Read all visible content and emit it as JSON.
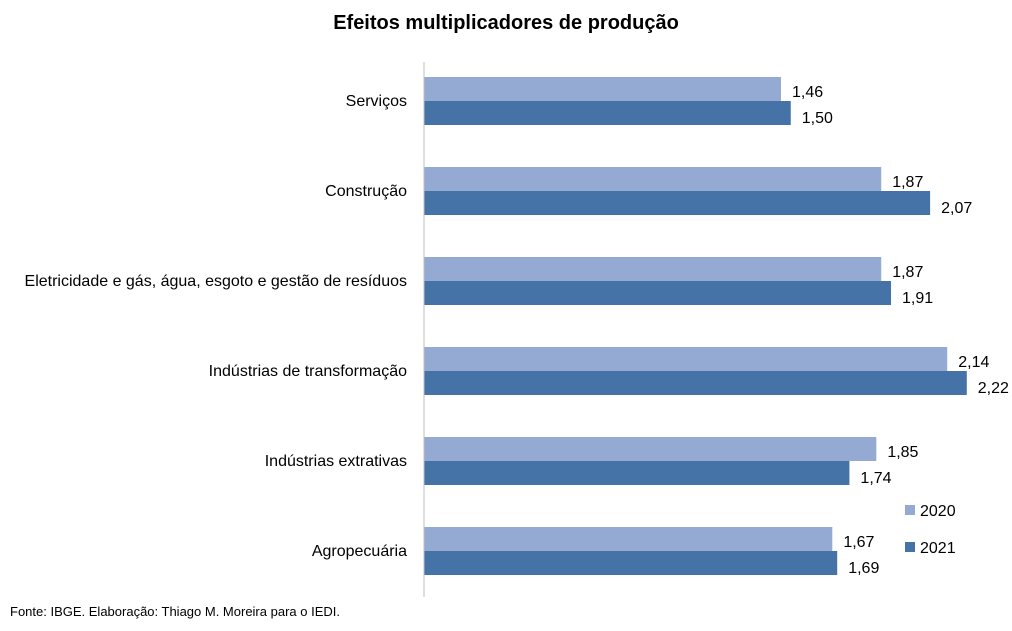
{
  "chart_data": {
    "type": "bar",
    "orientation": "horizontal",
    "title": "Efeitos multiplicadores de produção",
    "categories": [
      "Serviços",
      "Construção",
      "Eletricidade e gás, água, esgoto e gestão de resíduos",
      "Indústrias de transformação",
      "Indústrias extrativas",
      "Agropecuária"
    ],
    "series": [
      {
        "name": "2020",
        "color": "#95aad3",
        "values": [
          1.46,
          1.87,
          1.87,
          2.14,
          1.85,
          1.67
        ],
        "labels": [
          "1,46",
          "1,87",
          "1,87",
          "2,14",
          "1,85",
          "1,67"
        ]
      },
      {
        "name": "2021",
        "color": "#4572a7",
        "values": [
          1.5,
          2.07,
          1.91,
          2.22,
          1.74,
          1.69
        ],
        "labels": [
          "1,50",
          "2,07",
          "1,91",
          "2,22",
          "1,74",
          "1,69"
        ]
      }
    ],
    "xlim": [
      0,
      2.4
    ],
    "grid": false,
    "legend_position": "bottom-right"
  },
  "footer": {
    "source": "Fonte: IBGE. Elaboração: Thiago M. Moreira para o IEDI."
  }
}
